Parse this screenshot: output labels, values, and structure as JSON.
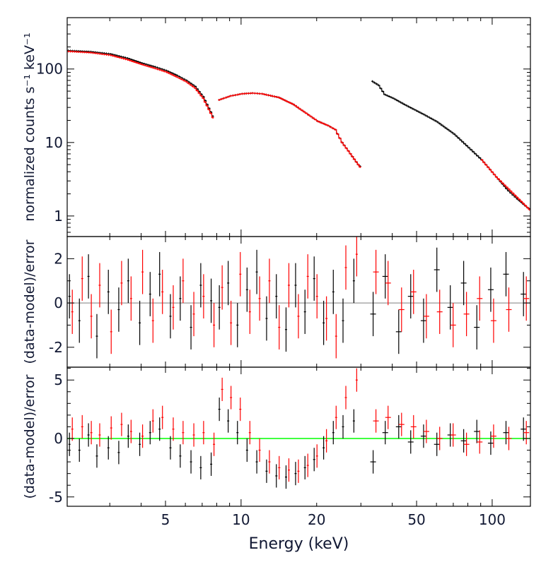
{
  "chart_data": [
    {
      "type": "line",
      "panel": "top",
      "ylabel": "normalized counts s⁻¹ keV⁻¹",
      "ylabel_parts": [
        "normalized counts s",
        "-1",
        " keV",
        "-1"
      ],
      "xscale": "log",
      "yscale": "log",
      "xlim": [
        2.03,
        142
      ],
      "ylim": [
        0.525,
        500
      ],
      "yticks": [
        1,
        10,
        100
      ],
      "ytick_labels": [
        "1",
        "10",
        "100"
      ],
      "series": [
        {
          "color": "#000000",
          "segments": [
            [
              [
                2.03,
                178
              ],
              [
                2.5,
                172
              ],
              [
                3,
                160
              ],
              [
                3.5,
                140
              ],
              [
                4,
                120
              ],
              [
                4.5,
                107
              ],
              [
                5,
                95
              ],
              [
                5.5,
                82
              ],
              [
                6,
                70
              ],
              [
                6.5,
                58
              ],
              [
                7,
                42
              ],
              [
                7.5,
                26
              ],
              [
                7.8,
                20
              ]
            ],
            [
              [
                8.1,
                38
              ],
              [
                9,
                43
              ],
              [
                10,
                46
              ],
              [
                11,
                47
              ],
              [
                12,
                46
              ],
              [
                14,
                41
              ],
              [
                16,
                33
              ],
              [
                18,
                25
              ],
              [
                20,
                19.5
              ],
              [
                22,
                17
              ],
              [
                23.5,
                15
              ],
              [
                25,
                10
              ],
              [
                27,
                7
              ],
              [
                29,
                5
              ],
              [
                30,
                4.5
              ]
            ],
            [
              [
                33,
                68
              ],
              [
                35,
                60
              ],
              [
                37,
                45
              ],
              [
                40,
                40
              ],
              [
                45,
                32
              ],
              [
                53,
                24
              ],
              [
                60,
                19
              ],
              [
                70,
                13
              ],
              [
                80,
                8.5
              ],
              [
                90,
                5.8
              ],
              [
                103,
                3.4
              ],
              [
                115,
                2.2
              ],
              [
                125,
                1.7
              ],
              [
                137,
                1.3
              ],
              [
                142,
                1.2
              ]
            ]
          ]
        },
        {
          "color": "#ff0000",
          "segments": [
            [
              [
                2.03,
                174
              ],
              [
                2.5,
                167
              ],
              [
                3,
                154
              ],
              [
                3.5,
                134
              ],
              [
                4,
                115
              ],
              [
                4.5,
                102
              ],
              [
                5,
                91
              ],
              [
                5.5,
                78
              ],
              [
                6,
                67
              ],
              [
                6.5,
                55
              ],
              [
                7,
                40
              ],
              [
                7.5,
                25
              ],
              [
                7.8,
                19
              ]
            ],
            [
              [
                8.1,
                38
              ],
              [
                9,
                43
              ],
              [
                10,
                46
              ],
              [
                11,
                47
              ],
              [
                12,
                46
              ],
              [
                14,
                41
              ],
              [
                16,
                33
              ],
              [
                18,
                25
              ],
              [
                20,
                19.5
              ],
              [
                22,
                17
              ],
              [
                23.5,
                15
              ],
              [
                25,
                10
              ],
              [
                27,
                7
              ],
              [
                29,
                5
              ],
              [
                30,
                4.3
              ]
            ],
            [
              [
                90,
                5.8
              ],
              [
                103,
                3.4
              ],
              [
                137,
                1.3
              ],
              [
                142,
                1.15
              ]
            ]
          ]
        }
      ]
    },
    {
      "type": "scatter",
      "panel": "middle",
      "ylabel": "(data-model)/error",
      "xscale": "log",
      "xlim": [
        2.03,
        142
      ],
      "ylim": [
        -2.9,
        3.0
      ],
      "yticks": [
        -2,
        0,
        2
      ],
      "ytick_labels": [
        "-2",
        "0",
        "2"
      ],
      "reference_line": {
        "y": 0,
        "color": "#aaaaaa"
      },
      "error": 1,
      "energy": [
        2.1,
        2.3,
        2.5,
        2.7,
        3.0,
        3.3,
        3.6,
        4.0,
        4.4,
        4.8,
        5.3,
        5.8,
        6.4,
        7.0,
        7.7,
        8.3,
        9.0,
        9.8,
        10.7,
        11.7,
        12.8,
        14.0,
        15.3,
        16.7,
        18.2,
        19.8,
        21.6,
        23.6,
        25.8,
        28.5,
        34,
        38,
        43,
        48,
        54,
        61,
        69,
        78,
        88,
        100,
        115,
        135
      ],
      "series": [
        {
          "color": "#000000",
          "values": [
            0.3,
            -0.8,
            1.2,
            -1.5,
            0.5,
            -0.3,
            1.0,
            -0.9,
            0.4,
            1.3,
            -0.6,
            0.2,
            -1.1,
            0.8,
            0.1,
            -0.2,
            0.9,
            -1.0,
            0.6,
            1.4,
            -0.7,
            0.3,
            -1.2,
            0.8,
            -0.4,
            1.1,
            -0.9,
            0.5,
            -0.8,
            1.0,
            -0.5,
            1.2,
            -1.3,
            0.3,
            -0.8,
            1.5,
            -0.2,
            0.9,
            -1.1,
            0.6,
            1.3,
            0.4
          ]
        },
        {
          "color": "#ff0000",
          "values": [
            -0.4,
            1.1,
            -0.6,
            0.8,
            -1.3,
            0.9,
            0.2,
            1.4,
            -0.8,
            0.5,
            -0.2,
            1.0,
            -0.5,
            0.3,
            -1.0,
            0.7,
            -0.9,
            1.3,
            -0.4,
            0.2,
            1.0,
            -1.1,
            0.8,
            -0.6,
            1.2,
            0.3,
            -0.7,
            -1.5,
            1.6,
            2.2,
            1.4,
            0.9,
            -0.3,
            0.5,
            -0.6,
            -0.4,
            -1.0,
            -0.5,
            0.2,
            -0.8,
            -0.3,
            0.2
          ]
        }
      ]
    },
    {
      "type": "scatter",
      "panel": "bottom",
      "ylabel": "(data-model)/error",
      "xlabel": "Energy (keV)",
      "xscale": "log",
      "xlim": [
        2.03,
        142
      ],
      "ylim": [
        -5.8,
        6.1
      ],
      "xticks": [
        5,
        10,
        20,
        50,
        100
      ],
      "xtick_labels": [
        "5",
        "10",
        "20",
        "50",
        "100"
      ],
      "yticks": [
        -5,
        0,
        5
      ],
      "ytick_labels": [
        "-5",
        "0",
        "5"
      ],
      "reference_line": {
        "y": 0,
        "color": "#00ff00"
      },
      "error": 1,
      "energy": [
        2.1,
        2.3,
        2.5,
        2.7,
        3.0,
        3.3,
        3.6,
        4.0,
        4.4,
        4.8,
        5.3,
        5.8,
        6.4,
        7.0,
        7.7,
        8.3,
        9.0,
        9.8,
        10.7,
        11.7,
        12.8,
        14.0,
        15.3,
        16.7,
        18.2,
        19.8,
        21.6,
        23.6,
        25.8,
        28.5,
        34,
        38,
        43,
        48,
        54,
        61,
        69,
        78,
        88,
        100,
        115,
        135
      ],
      "series": [
        {
          "color": "#000000",
          "values": [
            -0.5,
            -1.0,
            0.3,
            -1.5,
            -0.8,
            -1.2,
            0.2,
            -0.5,
            0.5,
            0.8,
            -0.8,
            -1.5,
            -2.0,
            -2.5,
            -2.2,
            2.5,
            1.5,
            0.5,
            -1.0,
            -2.0,
            -2.8,
            -3.2,
            -3.3,
            -3.0,
            -2.5,
            -1.8,
            -0.8,
            0.5,
            1.0,
            1.5,
            -2.0,
            0.5,
            1.0,
            -0.3,
            0.2,
            -0.5,
            0.3,
            -0.2,
            0.6,
            -0.4,
            0.5,
            0.8
          ]
        },
        {
          "color": "#ff0000",
          "values": [
            0.8,
            1.0,
            0.5,
            0.3,
            0.9,
            1.2,
            0.6,
            0.2,
            1.5,
            1.8,
            0.8,
            0.5,
            0.3,
            0.5,
            -0.5,
            4.2,
            3.5,
            2.5,
            0.5,
            -1.0,
            -2.0,
            -2.5,
            -2.7,
            -2.8,
            -2.3,
            -1.5,
            -0.2,
            1.8,
            3.5,
            5.0,
            1.5,
            1.8,
            1.2,
            1.0,
            0.6,
            0.0,
            0.3,
            -0.5,
            -0.3,
            0.2,
            0.0,
            0.5
          ]
        }
      ]
    }
  ]
}
